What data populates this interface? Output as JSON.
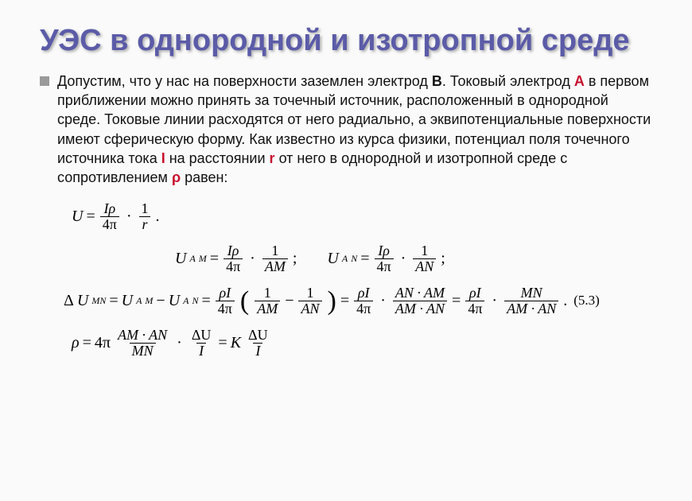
{
  "title": "УЭС  в однородной и изотропной среде",
  "bullet_text_1": "Допустим, что у нас на поверхности заземлен электрод ",
  "B": "В",
  "bullet_text_2": ". Токовый электрод ",
  "A": "A",
  "bullet_text_3": " в первом приближении можно принять за точечный источник, расположенный в однородной среде. Токовые линии расходятся от него радиально, а эквипотенциальные поверхности имеют сферическую форму. Как известно из курса физики, потенциал поля точечного источника тока ",
  "I": "I",
  "bullet_text_4": " на расстоянии ",
  "r": "r",
  "bullet_text_5": " от него в однородной и изотропной среде с сопротивлением ",
  "rho": "ρ",
  "bullet_text_6": " равен:",
  "eq": {
    "U": "U",
    "eq": "=",
    "Irho": "Iρ",
    "fourpi": "4π",
    "one": "1",
    "r": "r",
    "dot": "·",
    "period": ".",
    "semi": ";",
    "UM_A": "U",
    "M": "M",
    "N": "N",
    "AM": "AM",
    "AN": "AN",
    "MN": "MN",
    "deltaU": "ΔU",
    "delta": "Δ",
    "rhoI": "ρI",
    "minus": "−",
    "K": "K",
    "II": "I",
    "eqnum": "(5.3)",
    "rho_sym": "ρ",
    "AN_AM": "AN · AM",
    "AM_AN": "AM · AN"
  }
}
